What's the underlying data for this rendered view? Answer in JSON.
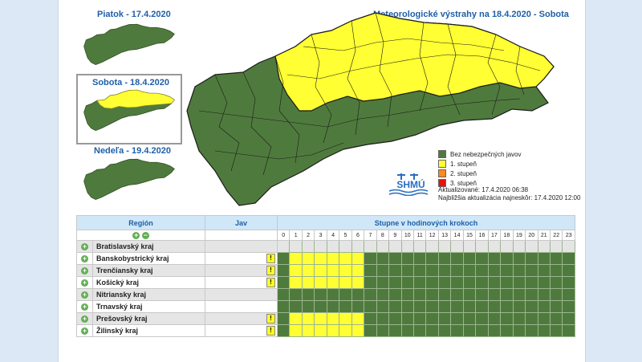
{
  "days": [
    {
      "label": "Piatok - 17.4.2020"
    },
    {
      "label": "Sobota - 18.4.2020"
    },
    {
      "label": "Nedeľa - 19.4.2020"
    }
  ],
  "main_title": "Meteorologické výstrahy na 18.4.2020 - Sobota",
  "legend": [
    {
      "label": "Bez nebezpečných javov",
      "color": "#4f7a3d"
    },
    {
      "label": "1. stupeň",
      "color": "#ffff33"
    },
    {
      "label": "2. stupeň",
      "color": "#ff8c1a"
    },
    {
      "label": "3. stupeň",
      "color": "#e8120c"
    }
  ],
  "logo_text": "SHMÚ",
  "updated": "Aktualizované: 17.4.2020 06:38",
  "next_update": "Najbližšia aktualizácia najneskôr: 17.4.2020 12:00",
  "table": {
    "col_region": "Región",
    "col_jav": "Jav",
    "col_hours": "Stupne v hodinových krokoch",
    "expand_all": "+",
    "collapse_all": "−",
    "hours": [
      "0",
      "1",
      "2",
      "3",
      "4",
      "5",
      "6",
      "7",
      "8",
      "9",
      "10",
      "11",
      "12",
      "13",
      "14",
      "15",
      "16",
      "17",
      "18",
      "19",
      "20",
      "21",
      "22",
      "23"
    ],
    "regions": [
      {
        "name": "Bratislavský kraj",
        "warn": false,
        "icon": "",
        "levels": "------------------------"
      },
      {
        "name": "Banskobystrický kraj",
        "warn": true,
        "icon": "!",
        "levels": "gyyyyyyggggggggggggggggg"
      },
      {
        "name": "Trenčiansky kraj",
        "warn": true,
        "icon": "!",
        "levels": "gyyyyyyggggggggggggggggg"
      },
      {
        "name": "Košický kraj",
        "warn": true,
        "icon": "!",
        "levels": "gyyyyyyggggggggggggggggg"
      },
      {
        "name": "Nitriansky kraj",
        "warn": false,
        "icon": "",
        "levels": "gggggggggggggggggggggggg"
      },
      {
        "name": "Trnavský kraj",
        "warn": false,
        "icon": "",
        "levels": "gggggggggggggggggggggggg"
      },
      {
        "name": "Prešovský kraj",
        "warn": true,
        "icon": "!",
        "levels": "gyyyyyyggggggggggggggggg"
      },
      {
        "name": "Žilinský kraj",
        "warn": true,
        "icon": "!",
        "levels": "gyyyyyyggggggggggggggggg"
      }
    ]
  },
  "colors": {
    "green": "#4f7a3d",
    "yellow": "#ffff33",
    "header": "#cfe7f7",
    "title": "#1f5fa8"
  }
}
